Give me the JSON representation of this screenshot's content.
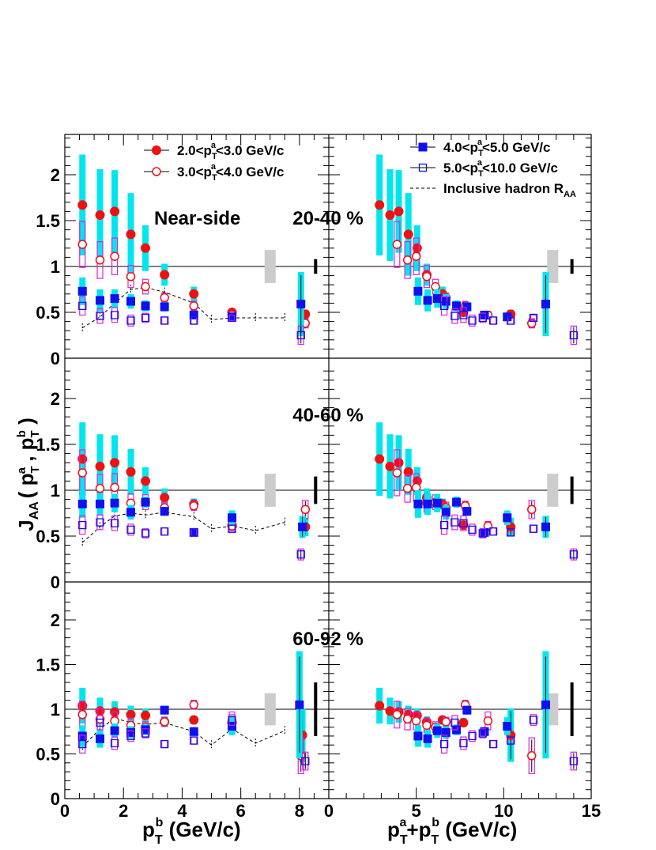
{
  "chart_data": {
    "type": "scatter",
    "ylabel": "J_AA ( p_T^a , p_T^b )",
    "y_axis_label_parts": {
      "main": "J",
      "sub_main": "AA",
      "open": "( p",
      "sub1": "T",
      "sup1": "a",
      "comma": " , p",
      "sub2": "T",
      "sup2": "b",
      "close": " )"
    },
    "x_axis_labels": {
      "left": {
        "p": "p",
        "sub": "T",
        "sup": "b",
        "rest": " (GeV/c)"
      },
      "right": {
        "p1": "p",
        "sub1": "T",
        "sup1": "a",
        "plus": "+p",
        "sub2": "T",
        "sup2": "b",
        "rest": " (GeV/c)"
      }
    },
    "xlim_left": [
      0,
      9
    ],
    "xlim_right": [
      0,
      15
    ],
    "ylim_top": [
      0,
      2.45
    ],
    "ylim_other": [
      0,
      2.3
    ],
    "left_x_ticks": [
      0,
      2,
      4,
      6,
      8
    ],
    "right_x_ticks": [
      0,
      5,
      10,
      15
    ],
    "y_tick_labels": [
      "0",
      "0.5",
      "1",
      "1.5",
      "2"
    ],
    "legend": {
      "left": [
        {
          "label": "2.0<p_T^a<3.0 GeV/c",
          "parts": [
            "2.0<p",
            "T",
            "a",
            "<3.0 GeV/c"
          ],
          "marker": "filled-circle"
        },
        {
          "label": "3.0<p_T^a<4.0 GeV/c",
          "parts": [
            "3.0<p",
            "T",
            "a",
            "<4.0 GeV/c"
          ],
          "marker": "open-circle"
        }
      ],
      "right": [
        {
          "label": "4.0<p_T^a<5.0 GeV/c",
          "parts": [
            "4.0<p",
            "T",
            "a",
            "<5.0 GeV/c"
          ],
          "marker": "filled-square"
        },
        {
          "label": "5.0<p_T^a<10.0 GeV/c",
          "parts": [
            "5.0<p",
            "T",
            "a",
            "<10.0 GeV/c"
          ],
          "marker": "open-square"
        },
        {
          "label": "Inclusive hadron R_AA",
          "parts": [
            "Inclusive hadron R",
            "AA"
          ],
          "marker": "dashed-line"
        }
      ]
    },
    "colors": {
      "series_a": "#ee1111",
      "series_b": "#1111ee",
      "sys_fill": "#00e5ee",
      "sys_open": "#dd22dd",
      "norm_box": "#cccccc",
      "axis": "#000000"
    },
    "near_side_label": "Near-side",
    "panels": [
      {
        "centrality": "20-40 %",
        "near_side": true,
        "series": [
          {
            "name": "2.0<p_T^a<3.0 GeV/c",
            "marker": "filled-circle",
            "x_left": [
              0.6,
              1.2,
              1.7,
              2.25,
              2.75,
              3.4,
              4.4,
              5.7,
              8.2
            ],
            "y": [
              1.67,
              1.56,
              1.6,
              1.35,
              1.2,
              0.91,
              0.7,
              0.5,
              0.48
            ],
            "sys": [
              0.55,
              0.5,
              0.45,
              0.45,
              0.25,
              0.12,
              0.08,
              0.04,
              0.05
            ],
            "x_right": [
              2.9,
              3.5,
              4.0,
              4.55,
              5.05,
              5.6,
              6.5,
              7.7,
              10.4
            ]
          },
          {
            "name": "3.0<p_T^a<4.0 GeV/c",
            "marker": "open-circle",
            "x_left": [
              0.6,
              1.2,
              1.7,
              2.25,
              2.75,
              3.4,
              4.4,
              5.7,
              8.2
            ],
            "y": [
              1.24,
              1.07,
              1.11,
              0.89,
              0.78,
              0.66,
              0.57,
              0.47,
              0.38
            ],
            "sys": [
              0.25,
              0.2,
              0.2,
              0.12,
              0.08,
              0.05,
              0.05,
              0.04,
              0.05
            ],
            "x_right": [
              3.9,
              4.5,
              5.0,
              5.6,
              6.1,
              6.7,
              7.8,
              9.1,
              11.6
            ]
          },
          {
            "name": "4.0<p_T^a<5.0 GeV/c",
            "marker": "filled-square",
            "x_left": [
              0.6,
              1.2,
              1.7,
              2.25,
              2.75,
              3.4,
              4.4,
              5.7,
              8.05
            ],
            "y": [
              0.73,
              0.63,
              0.65,
              0.62,
              0.57,
              0.56,
              0.47,
              0.45,
              0.59
            ],
            "sys": [
              0.15,
              0.12,
              0.1,
              0.08,
              0.06,
              0.05,
              0.04,
              0.03,
              0.35
            ],
            "x_right": [
              5.1,
              5.65,
              6.2,
              6.7,
              7.3,
              7.9,
              8.9,
              10.2,
              12.4
            ]
          },
          {
            "name": "5.0<p_T^a<10.0 GeV/c",
            "marker": "open-square",
            "x_left": [
              0.6,
              1.2,
              1.7,
              2.25,
              2.75,
              3.4,
              4.4,
              5.7,
              8.05
            ],
            "y": [
              0.57,
              0.46,
              0.47,
              0.41,
              0.44,
              0.41,
              0.41,
              0.44,
              0.25
            ],
            "sys": [
              0.1,
              0.08,
              0.08,
              0.06,
              0.05,
              0.04,
              0.04,
              0.03,
              0.1
            ],
            "x_right": [
              6.6,
              7.2,
              7.7,
              8.2,
              8.8,
              9.4,
              10.4,
              11.7,
              14.0
            ]
          }
        ],
        "raa": {
          "x": [
            0.6,
            1.2,
            1.7,
            2.25,
            2.75,
            3.4,
            4.4,
            5.0,
            5.7,
            6.5,
            7.5
          ],
          "y": [
            0.33,
            0.45,
            0.6,
            0.75,
            0.77,
            0.72,
            0.6,
            0.42,
            0.44,
            0.44,
            0.44
          ]
        },
        "norm_uncert": 0.18,
        "bar_uncert": 0.08
      },
      {
        "centrality": "40-60 %",
        "near_side": false,
        "series": [
          {
            "name": "2.0<p_T^a<3.0 GeV/c",
            "marker": "filled-circle",
            "x_left": [
              0.6,
              1.2,
              1.7,
              2.25,
              2.75,
              3.4,
              4.4,
              5.7,
              8.2
            ],
            "y": [
              1.34,
              1.26,
              1.3,
              1.2,
              1.1,
              0.92,
              0.85,
              0.62,
              0.6
            ],
            "sys": [
              0.4,
              0.35,
              0.3,
              0.25,
              0.15,
              0.1,
              0.06,
              0.05,
              0.1
            ],
            "x_right": [
              2.9,
              3.5,
              4.0,
              4.55,
              5.05,
              5.6,
              6.5,
              7.7,
              10.4
            ]
          },
          {
            "name": "3.0<p_T^a<4.0 GeV/c",
            "marker": "open-circle",
            "x_left": [
              0.6,
              1.2,
              1.7,
              2.25,
              2.75,
              3.4,
              4.4,
              5.7,
              8.2
            ],
            "y": [
              1.19,
              1.02,
              1.03,
              0.86,
              0.87,
              0.81,
              0.83,
              0.61,
              0.79
            ],
            "sys": [
              0.25,
              0.15,
              0.15,
              0.1,
              0.08,
              0.06,
              0.05,
              0.05,
              0.1
            ],
            "x_right": [
              3.9,
              4.5,
              5.0,
              5.6,
              6.1,
              6.7,
              7.8,
              9.1,
              11.6
            ]
          },
          {
            "name": "4.0<p_T^a<5.0 GeV/c",
            "marker": "filled-square",
            "x_left": [
              0.6,
              1.2,
              1.7,
              2.25,
              2.75,
              3.4,
              4.4,
              5.7,
              8.1
            ],
            "y": [
              0.85,
              0.85,
              0.86,
              0.76,
              0.87,
              0.77,
              0.54,
              0.7,
              0.6
            ],
            "sys": [
              0.15,
              0.12,
              0.1,
              0.08,
              0.06,
              0.05,
              0.04,
              0.08,
              0.12
            ],
            "x_right": [
              5.1,
              5.65,
              6.2,
              6.7,
              7.3,
              7.9,
              8.9,
              10.2,
              12.4
            ]
          },
          {
            "name": "5.0<p_T^a<10.0 GeV/c",
            "marker": "open-square",
            "x_left": [
              0.6,
              1.2,
              1.7,
              2.25,
              2.75,
              3.4,
              4.4,
              5.7,
              8.05
            ],
            "y": [
              0.62,
              0.65,
              0.64,
              0.57,
              0.53,
              0.55,
              0.54,
              0.58,
              0.3
            ],
            "sys": [
              0.1,
              0.08,
              0.08,
              0.06,
              0.05,
              0.04,
              0.04,
              0.04,
              0.06
            ],
            "x_right": [
              6.6,
              7.2,
              7.7,
              8.2,
              8.8,
              9.4,
              10.4,
              11.7,
              14.0
            ]
          }
        ],
        "raa": {
          "x": [
            0.6,
            1.2,
            1.7,
            2.25,
            2.75,
            3.4,
            4.4,
            5.0,
            5.7,
            6.5,
            7.5
          ],
          "y": [
            0.43,
            0.6,
            0.72,
            0.75,
            0.73,
            0.76,
            0.71,
            0.58,
            0.61,
            0.56,
            0.65
          ]
        },
        "norm_uncert": 0.18,
        "bar_uncert": 0.15
      },
      {
        "centrality": "60-92 %",
        "near_side": false,
        "series": [
          {
            "name": "2.0<p_T^a<3.0 GeV/c",
            "marker": "filled-circle",
            "x_left": [
              0.6,
              1.2,
              1.7,
              2.25,
              2.75,
              3.4,
              4.4,
              5.7,
              8.1
            ],
            "y": [
              1.04,
              0.98,
              0.97,
              0.94,
              0.93,
              0.86,
              0.88,
              0.85,
              0.71
            ],
            "sys": [
              0.2,
              0.15,
              0.12,
              0.1,
              0.08,
              0.06,
              0.05,
              0.05,
              0.3
            ],
            "x_right": [
              2.9,
              3.5,
              4.0,
              4.55,
              5.05,
              5.6,
              6.5,
              7.7,
              10.4
            ]
          },
          {
            "name": "3.0<p_T^a<4.0 GeV/c",
            "marker": "open-circle",
            "x_left": [
              0.6,
              1.2,
              1.7,
              2.25,
              2.75,
              3.4,
              4.4,
              5.7,
              8.05
            ],
            "y": [
              0.94,
              0.89,
              0.87,
              0.82,
              0.8,
              0.86,
              1.05,
              0.87,
              0.48
            ],
            "sys": [
              0.15,
              0.12,
              0.1,
              0.08,
              0.06,
              0.05,
              0.05,
              0.1,
              0.2
            ],
            "x_right": [
              3.9,
              4.5,
              5.0,
              5.6,
              6.1,
              6.7,
              7.8,
              9.1,
              11.6
            ]
          },
          {
            "name": "4.0<p_T^a<5.0 GeV/c",
            "marker": "filled-square",
            "x_left": [
              0.6,
              1.2,
              1.7,
              2.25,
              2.75,
              3.4,
              4.4,
              5.7,
              8.0
            ],
            "y": [
              0.7,
              0.67,
              0.76,
              0.74,
              0.77,
              0.99,
              0.75,
              0.81,
              1.05
            ],
            "sys": [
              0.12,
              0.1,
              0.08,
              0.07,
              0.06,
              0.05,
              0.05,
              0.1,
              0.6
            ],
            "x_right": [
              5.1,
              5.65,
              6.2,
              6.7,
              7.3,
              7.9,
              8.9,
              10.2,
              12.4
            ]
          },
          {
            "name": "5.0<p_T^a<10.0 GeV/c",
            "marker": "open-square",
            "x_left": [
              0.6,
              1.2,
              1.7,
              2.25,
              2.75,
              3.4,
              4.4,
              5.7,
              8.2
            ],
            "y": [
              0.61,
              0.85,
              0.62,
              0.7,
              0.73,
              0.61,
              0.65,
              0.88,
              0.42
            ],
            "sys": [
              0.1,
              0.08,
              0.07,
              0.06,
              0.05,
              0.04,
              0.04,
              0.06,
              0.1
            ],
            "x_right": [
              6.6,
              7.2,
              7.7,
              8.2,
              8.8,
              9.4,
              10.4,
              11.7,
              14.0
            ]
          }
        ],
        "raa": {
          "x": [
            0.6,
            1.2,
            1.7,
            2.25,
            2.75,
            3.4,
            4.4,
            5.0,
            5.7,
            6.5,
            7.5
          ],
          "y": [
            0.58,
            0.78,
            0.9,
            0.85,
            0.83,
            0.85,
            0.75,
            0.6,
            0.78,
            0.62,
            0.76
          ]
        },
        "norm_uncert": 0.18,
        "bar_uncert": 0.3
      }
    ]
  }
}
